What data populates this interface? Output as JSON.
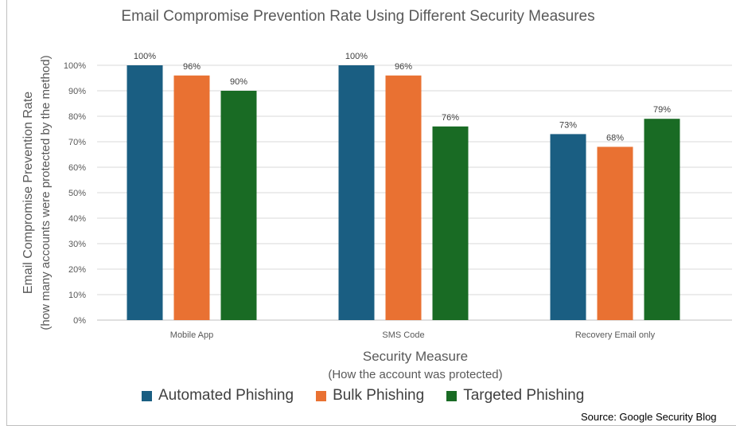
{
  "chart_data": {
    "type": "bar",
    "title": "Email Compromise Prevention Rate Using Different Security Measures",
    "xlabel": "Security Measure",
    "xlabel_sub": "(How the account was protected)",
    "ylabel": "Email Compromise Prevention Rate",
    "ylabel_sub": "(how many accounts were protected by the method)",
    "categories": [
      "Mobile App",
      "SMS Code",
      "Recovery Email only"
    ],
    "series": [
      {
        "name": "Automated Phishing",
        "values": [
          100,
          100,
          73
        ],
        "color": "#1a5e82"
      },
      {
        "name": "Bulk Phishing",
        "values": [
          96,
          96,
          68
        ],
        "color": "#e97132"
      },
      {
        "name": "Targeted Phishing",
        "values": [
          90,
          76,
          79
        ],
        "color": "#196b24"
      }
    ],
    "value_labels": [
      [
        "100%",
        "100%",
        "73%"
      ],
      [
        "96%",
        "96%",
        "68%"
      ],
      [
        "90%",
        "76%",
        "79%"
      ]
    ],
    "ylim": [
      0,
      100
    ],
    "yticks": [
      0,
      10,
      20,
      30,
      40,
      50,
      60,
      70,
      80,
      90,
      100
    ],
    "ytick_labels": [
      "0%",
      "10%",
      "20%",
      "30%",
      "40%",
      "50%",
      "60%",
      "70%",
      "80%",
      "90%",
      "100%"
    ],
    "grid": true,
    "legend_position": "bottom",
    "source": "Source: Google Security Blog"
  }
}
